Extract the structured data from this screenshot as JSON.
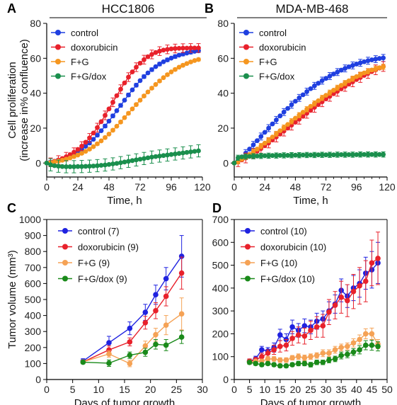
{
  "chart_data": [
    {
      "panel": "A",
      "type": "line",
      "title": "HCC1806",
      "xlabel": "Time, h",
      "ylabel": [
        "Cell proliferation",
        "(increase in% confluence)"
      ],
      "xlim": [
        0,
        120
      ],
      "ylim": [
        -8,
        80
      ],
      "xticks": [
        0,
        24,
        48,
        72,
        96,
        120
      ],
      "yticks": [
        0,
        20,
        40,
        60,
        80
      ],
      "legend": "top-left",
      "x": [
        0,
        3,
        6,
        9,
        12,
        15,
        18,
        21,
        24,
        27,
        30,
        33,
        36,
        39,
        42,
        45,
        48,
        51,
        54,
        57,
        60,
        63,
        66,
        69,
        72,
        75,
        78,
        81,
        84,
        87,
        90,
        93,
        96,
        99,
        102,
        105,
        108,
        111,
        114,
        117
      ],
      "series": [
        {
          "name": "control",
          "color": "#1f3fe0",
          "values": [
            0,
            0.5,
            1,
            1.6,
            2.3,
            3.1,
            4.1,
            5.2,
            6.4,
            7.9,
            9.6,
            11.5,
            13.6,
            16,
            18.5,
            21.2,
            24,
            27,
            30,
            33,
            36,
            39,
            41.9,
            44.6,
            47.2,
            49.5,
            51.6,
            53.5,
            55.2,
            56.7,
            58,
            59.1,
            60.1,
            61,
            61.8,
            62.4,
            63,
            63.5,
            64,
            64.3
          ],
          "err": 1
        },
        {
          "name": "doxorubicin",
          "color": "#e8212b",
          "values": [
            0,
            0.4,
            1,
            1.7,
            2.6,
            3.6,
            4.8,
            6.2,
            7.8,
            9.7,
            11.9,
            14.4,
            17.2,
            20.3,
            23.7,
            27.3,
            31,
            34.8,
            38.6,
            42.3,
            45.9,
            49.2,
            52.2,
            54.9,
            57.2,
            59.2,
            60.9,
            62.2,
            63.3,
            64.1,
            64.7,
            65.1,
            65.4,
            65.6,
            65.7,
            65.8,
            65.8,
            65.9,
            65.9,
            65.9
          ],
          "err": 2.5
        },
        {
          "name": "F+G",
          "color": "#f5961f",
          "values": [
            0,
            0.3,
            0.7,
            1.1,
            1.6,
            2.2,
            2.9,
            3.7,
            4.6,
            5.6,
            6.7,
            8,
            9.4,
            11,
            12.7,
            14.6,
            16.6,
            18.8,
            21.1,
            23.5,
            26,
            28.5,
            31,
            33.5,
            36,
            38.4,
            40.7,
            42.9,
            45,
            47,
            48.9,
            50.6,
            52.2,
            53.6,
            54.9,
            56,
            57,
            57.9,
            58.7,
            59.3
          ],
          "err": 0.8
        },
        {
          "name": "F+G/dox",
          "color": "#1a8f4d",
          "values": [
            0,
            -1,
            -1.5,
            -1.8,
            -2,
            -2.1,
            -2.1,
            -2.1,
            -2,
            -2,
            -1.9,
            -1.8,
            -1.7,
            -1.5,
            -1.3,
            -1.1,
            -0.8,
            -0.5,
            -0.2,
            0.2,
            0.6,
            1,
            1.4,
            1.8,
            2.2,
            2.6,
            3,
            3.4,
            3.7,
            4,
            4.3,
            4.6,
            4.9,
            5.2,
            5.5,
            5.8,
            6.1,
            6.4,
            6.7,
            7
          ],
          "err": 3.5
        }
      ]
    },
    {
      "panel": "B",
      "type": "line",
      "title": "MDA-MB-468",
      "xlabel": "Time, h",
      "ylabel": [],
      "xlim": [
        0,
        120
      ],
      "ylim": [
        -8,
        80
      ],
      "xticks": [
        0,
        24,
        48,
        72,
        96,
        120
      ],
      "yticks": [
        0,
        20,
        40,
        60,
        80
      ],
      "legend": "top-left",
      "x": [
        0,
        3,
        6,
        9,
        12,
        15,
        18,
        21,
        24,
        27,
        30,
        33,
        36,
        39,
        42,
        45,
        48,
        51,
        54,
        57,
        60,
        63,
        66,
        69,
        72,
        75,
        78,
        81,
        84,
        87,
        90,
        93,
        96,
        99,
        102,
        105,
        108,
        111,
        114,
        117
      ],
      "series": [
        {
          "name": "control",
          "color": "#1f3fe0",
          "values": [
            0,
            1.5,
            3.5,
            5.7,
            8,
            10.4,
            12.8,
            15.2,
            17.6,
            20,
            22.4,
            24.7,
            27,
            29.2,
            31.3,
            33.4,
            35.4,
            37.3,
            39.1,
            40.9,
            42.6,
            44.2,
            45.7,
            47.2,
            48.5,
            49.8,
            51,
            52.1,
            53.2,
            54.2,
            55.1,
            55.9,
            56.7,
            57.4,
            58,
            58.6,
            59.1,
            59.5,
            59.9,
            60.2
          ],
          "err": 2
        },
        {
          "name": "doxorubicin",
          "color": "#e8212b",
          "values": [
            0,
            0.8,
            1.8,
            2.9,
            4.1,
            5.4,
            6.8,
            8.3,
            9.9,
            11.5,
            13.2,
            14.9,
            16.6,
            18.3,
            20,
            21.7,
            23.4,
            25.1,
            26.8,
            28.5,
            30.2,
            31.9,
            33.5,
            35.1,
            36.7,
            38.2,
            39.7,
            41.1,
            42.5,
            43.9,
            45.2,
            46.5,
            47.8,
            49,
            50.2,
            51.3,
            52.4,
            53.4,
            54.4,
            55.3
          ],
          "err": 2.8
        },
        {
          "name": "F+G",
          "color": "#f5961f",
          "values": [
            0,
            1,
            2.2,
            3.5,
            4.9,
            6.4,
            8,
            9.7,
            11.4,
            13.1,
            14.9,
            16.7,
            18.5,
            20.3,
            22.1,
            23.9,
            25.7,
            27.4,
            29.1,
            30.8,
            32.5,
            34.1,
            35.7,
            37.3,
            38.8,
            40.3,
            41.7,
            43.1,
            44.5,
            45.8,
            47.1,
            48.3,
            49.5,
            50.6,
            51.6,
            52.5,
            53.3,
            54,
            54.6,
            55.1
          ],
          "err": 1.5
        },
        {
          "name": "F+G/dox",
          "color": "#1a8f4d",
          "values": [
            0,
            3,
            3.5,
            3.7,
            3.8,
            3.9,
            4,
            4.1,
            4.2,
            4.2,
            4.3,
            4.3,
            4.4,
            4.4,
            4.4,
            4.5,
            4.5,
            4.5,
            4.6,
            4.6,
            4.6,
            4.6,
            4.7,
            4.7,
            4.7,
            4.7,
            4.7,
            4.8,
            4.8,
            4.8,
            4.8,
            4.8,
            4.8,
            4.9,
            4.9,
            4.9,
            4.9,
            4.9,
            4.9,
            4.9
          ],
          "err": 1.5
        }
      ]
    },
    {
      "panel": "C",
      "type": "line",
      "title": "",
      "xlabel": "Days of tumor growth",
      "ylabel": [
        "Tumor volume (mm³)"
      ],
      "xlim": [
        0,
        30
      ],
      "ylim": [
        0,
        1000
      ],
      "xticks": [
        0,
        5,
        10,
        15,
        20,
        25,
        30
      ],
      "yticks": [
        0,
        100,
        200,
        300,
        400,
        500,
        600,
        700,
        800,
        900,
        1000
      ],
      "legend": "top-left",
      "series": [
        {
          "name": "control (7)",
          "color": "#1f22e0",
          "x": [
            7,
            12,
            16,
            19,
            21,
            23,
            26
          ],
          "values": [
            115,
            230,
            320,
            420,
            530,
            630,
            770
          ],
          "err": [
            15,
            40,
            40,
            50,
            60,
            70,
            130
          ]
        },
        {
          "name": "doxorubicin (9)",
          "color": "#e8212b",
          "x": [
            7,
            12,
            16,
            19,
            21,
            23,
            26
          ],
          "values": [
            110,
            185,
            235,
            355,
            430,
            520,
            665
          ],
          "err": [
            10,
            25,
            25,
            40,
            50,
            60,
            100
          ]
        },
        {
          "name": "F+G (9)",
          "color": "#f5a255",
          "x": [
            7,
            12,
            16,
            19,
            21,
            23,
            26
          ],
          "values": [
            110,
            160,
            100,
            210,
            280,
            340,
            410
          ],
          "err": [
            10,
            20,
            20,
            30,
            40,
            60,
            100
          ]
        },
        {
          "name": "F+G/dox (9)",
          "color": "#1a8a1a",
          "x": [
            7,
            12,
            16,
            19,
            21,
            23,
            26
          ],
          "values": [
            108,
            102,
            152,
            170,
            220,
            215,
            265
          ],
          "err": [
            10,
            20,
            20,
            25,
            30,
            35,
            40
          ]
        }
      ]
    },
    {
      "panel": "D",
      "type": "line",
      "title": "",
      "xlabel": "Days of tumor growth",
      "ylabel": [],
      "xlim": [
        0,
        50
      ],
      "ylim": [
        0,
        700
      ],
      "xticks": [
        0,
        5,
        10,
        15,
        20,
        25,
        30,
        35,
        40,
        45,
        50
      ],
      "yticks": [
        0,
        100,
        200,
        300,
        400,
        500,
        600,
        700
      ],
      "legend": "top-left",
      "series": [
        {
          "name": "control (10)",
          "color": "#1f22e0",
          "x": [
            5,
            7,
            9,
            11,
            13,
            15,
            17,
            19,
            21,
            23,
            25,
            27,
            29,
            31,
            33,
            35,
            37,
            39,
            41,
            43,
            45,
            47
          ],
          "values": [
            80,
            90,
            130,
            125,
            140,
            195,
            175,
            230,
            215,
            235,
            230,
            255,
            265,
            300,
            330,
            390,
            365,
            400,
            420,
            465,
            480,
            510
          ],
          "err": [
            10,
            12,
            15,
            15,
            20,
            25,
            25,
            30,
            30,
            30,
            30,
            35,
            35,
            40,
            40,
            50,
            50,
            55,
            60,
            70,
            80,
            90
          ]
        },
        {
          "name": "doxorubicin (10)",
          "color": "#e8212b",
          "x": [
            5,
            7,
            9,
            11,
            13,
            15,
            17,
            19,
            21,
            23,
            25,
            27,
            29,
            31,
            33,
            35,
            37,
            39,
            41,
            43,
            45,
            47
          ],
          "values": [
            80,
            85,
            100,
            115,
            130,
            145,
            150,
            180,
            195,
            190,
            215,
            230,
            235,
            295,
            325,
            360,
            345,
            385,
            410,
            430,
            510,
            530
          ],
          "err": [
            10,
            12,
            15,
            15,
            20,
            25,
            25,
            30,
            35,
            35,
            40,
            45,
            50,
            55,
            60,
            70,
            70,
            75,
            80,
            90,
            100,
            115
          ]
        },
        {
          "name": "F+G (10)",
          "color": "#f5a255",
          "x": [
            5,
            7,
            9,
            11,
            13,
            15,
            17,
            19,
            21,
            23,
            25,
            27,
            29,
            31,
            33,
            35,
            37,
            39,
            41,
            43,
            45,
            47
          ],
          "values": [
            75,
            80,
            80,
            90,
            90,
            85,
            85,
            95,
            100,
            95,
            100,
            105,
            115,
            115,
            130,
            140,
            145,
            160,
            175,
            200,
            200,
            155
          ],
          "err": [
            8,
            8,
            8,
            10,
            10,
            10,
            10,
            10,
            12,
            12,
            12,
            12,
            15,
            15,
            15,
            15,
            15,
            18,
            20,
            22,
            25,
            20
          ]
        },
        {
          "name": "F+G/dox (10)",
          "color": "#1a8a1a",
          "x": [
            5,
            7,
            9,
            11,
            13,
            15,
            17,
            19,
            21,
            23,
            25,
            27,
            29,
            31,
            33,
            35,
            37,
            39,
            41,
            43,
            45,
            47
          ],
          "values": [
            75,
            70,
            65,
            70,
            65,
            60,
            60,
            65,
            70,
            70,
            65,
            75,
            75,
            85,
            90,
            105,
            110,
            120,
            130,
            150,
            150,
            145
          ],
          "err": [
            8,
            8,
            8,
            8,
            8,
            8,
            8,
            8,
            10,
            10,
            10,
            10,
            10,
            12,
            12,
            15,
            15,
            15,
            18,
            20,
            22,
            20
          ]
        }
      ]
    }
  ]
}
